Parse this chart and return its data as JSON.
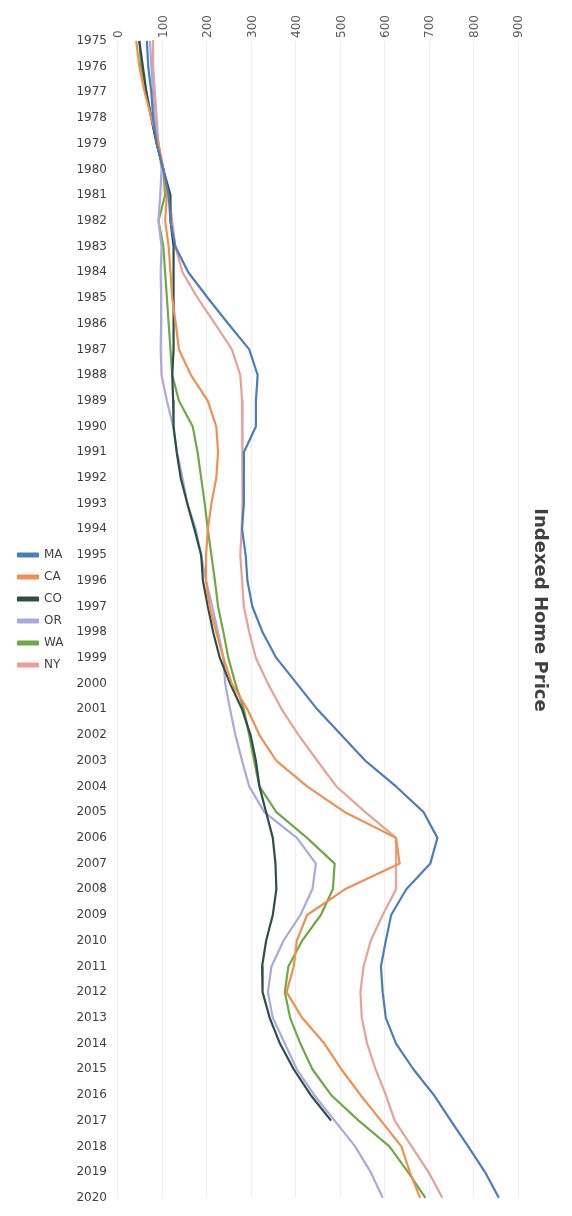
{
  "chart_data": {
    "type": "line",
    "title": "Indexed Home Price",
    "orientation": "horizontal",
    "categories": [
      "1975",
      "1976",
      "1977",
      "1978",
      "1979",
      "1980",
      "1981",
      "1982",
      "1983",
      "1984",
      "1985",
      "1986",
      "1987",
      "1988",
      "1989",
      "1990",
      "1991",
      "1992",
      "1993",
      "1994",
      "1995",
      "1996",
      "1997",
      "1998",
      "1999",
      "2000",
      "2001",
      "2002",
      "2003",
      "2004",
      "2005",
      "2006",
      "2007",
      "2008",
      "2009",
      "2010",
      "2011",
      "2012",
      "2013",
      "2014",
      "2015",
      "2016",
      "2017",
      "2018",
      "2019",
      "2020"
    ],
    "series": [
      {
        "name": "MA",
        "color": "#4a7ebb",
        "values": [
          65,
          68,
          75,
          79,
          87,
          102,
          114,
          118,
          129,
          158,
          202,
          248,
          295,
          314,
          310,
          310,
          283,
          283,
          283,
          279,
          287,
          291,
          302,
          325,
          356,
          402,
          448,
          502,
          556,
          625,
          687,
          718,
          702,
          648,
          614,
          602,
          591,
          595,
          602,
          625,
          664,
          710,
          748,
          787,
          825,
          856
        ]
      },
      {
        "name": "CA",
        "color": "#f28e50",
        "values": [
          41,
          48,
          60,
          75,
          91,
          102,
          110,
          106,
          114,
          118,
          122,
          130,
          137,
          164,
          202,
          221,
          225,
          221,
          210,
          202,
          198,
          198,
          206,
          221,
          237,
          256,
          291,
          318,
          356,
          425,
          510,
          625,
          633,
          510,
          425,
          402,
          395,
          379,
          414,
          464,
          502,
          545,
          591,
          637,
          656,
          679
        ]
      },
      {
        "name": "CO",
        "color": "#2d4f4a",
        "values": [
          48,
          56,
          64,
          75,
          87,
          102,
          118,
          118,
          125,
          125,
          125,
          125,
          125,
          122,
          124,
          125,
          132,
          141,
          156,
          172,
          187,
          191,
          202,
          214,
          229,
          252,
          279,
          298,
          310,
          318,
          333,
          348,
          354,
          356,
          348,
          333,
          324,
          325,
          341,
          364,
          395,
          433,
          479,
          null,
          null,
          null
        ]
      },
      {
        "name": "OR",
        "color": "#a9a9db",
        "values": [
          72,
          75,
          79,
          83,
          91,
          98,
          95,
          91,
          98,
          96,
          97,
          97,
          96,
          98,
          110,
          124,
          133,
          145,
          156,
          175,
          187,
          198,
          212,
          225,
          237,
          241,
          252,
          264,
          279,
          295,
          329,
          402,
          445,
          437,
          410,
          372,
          345,
          337,
          348,
          375,
          402,
          441,
          487,
          533,
          568,
          595
        ]
      },
      {
        "name": "WA",
        "color": "#70a845",
        "values": [
          48,
          52,
          64,
          75,
          87,
          102,
          106,
          91,
          102,
          106,
          110,
          114,
          118,
          122,
          137,
          168,
          179,
          187,
          195,
          202,
          210,
          218,
          225,
          237,
          248,
          264,
          283,
          295,
          306,
          318,
          356,
          425,
          487,
          483,
          456,
          414,
          383,
          375,
          387,
          410,
          437,
          479,
          541,
          610,
          652,
          691
        ]
      },
      {
        "name": "NY",
        "color": "#e8a098",
        "values": [
          79,
          79,
          83,
          87,
          91,
          102,
          114,
          122,
          129,
          145,
          179,
          218,
          256,
          275,
          279,
          281,
          279,
          281,
          279,
          278,
          275,
          279,
          283,
          295,
          310,
          337,
          368,
          406,
          448,
          491,
          556,
          625,
          625,
          625,
          595,
          568,
          552,
          545,
          548,
          560,
          579,
          602,
          622,
          660,
          698,
          729
        ]
      }
    ],
    "xlim": [
      0,
      900
    ],
    "xticks": [
      0,
      100,
      200,
      300,
      400,
      500,
      600,
      700,
      800,
      900
    ],
    "grid": "x",
    "legend": "left",
    "marker": "none"
  }
}
